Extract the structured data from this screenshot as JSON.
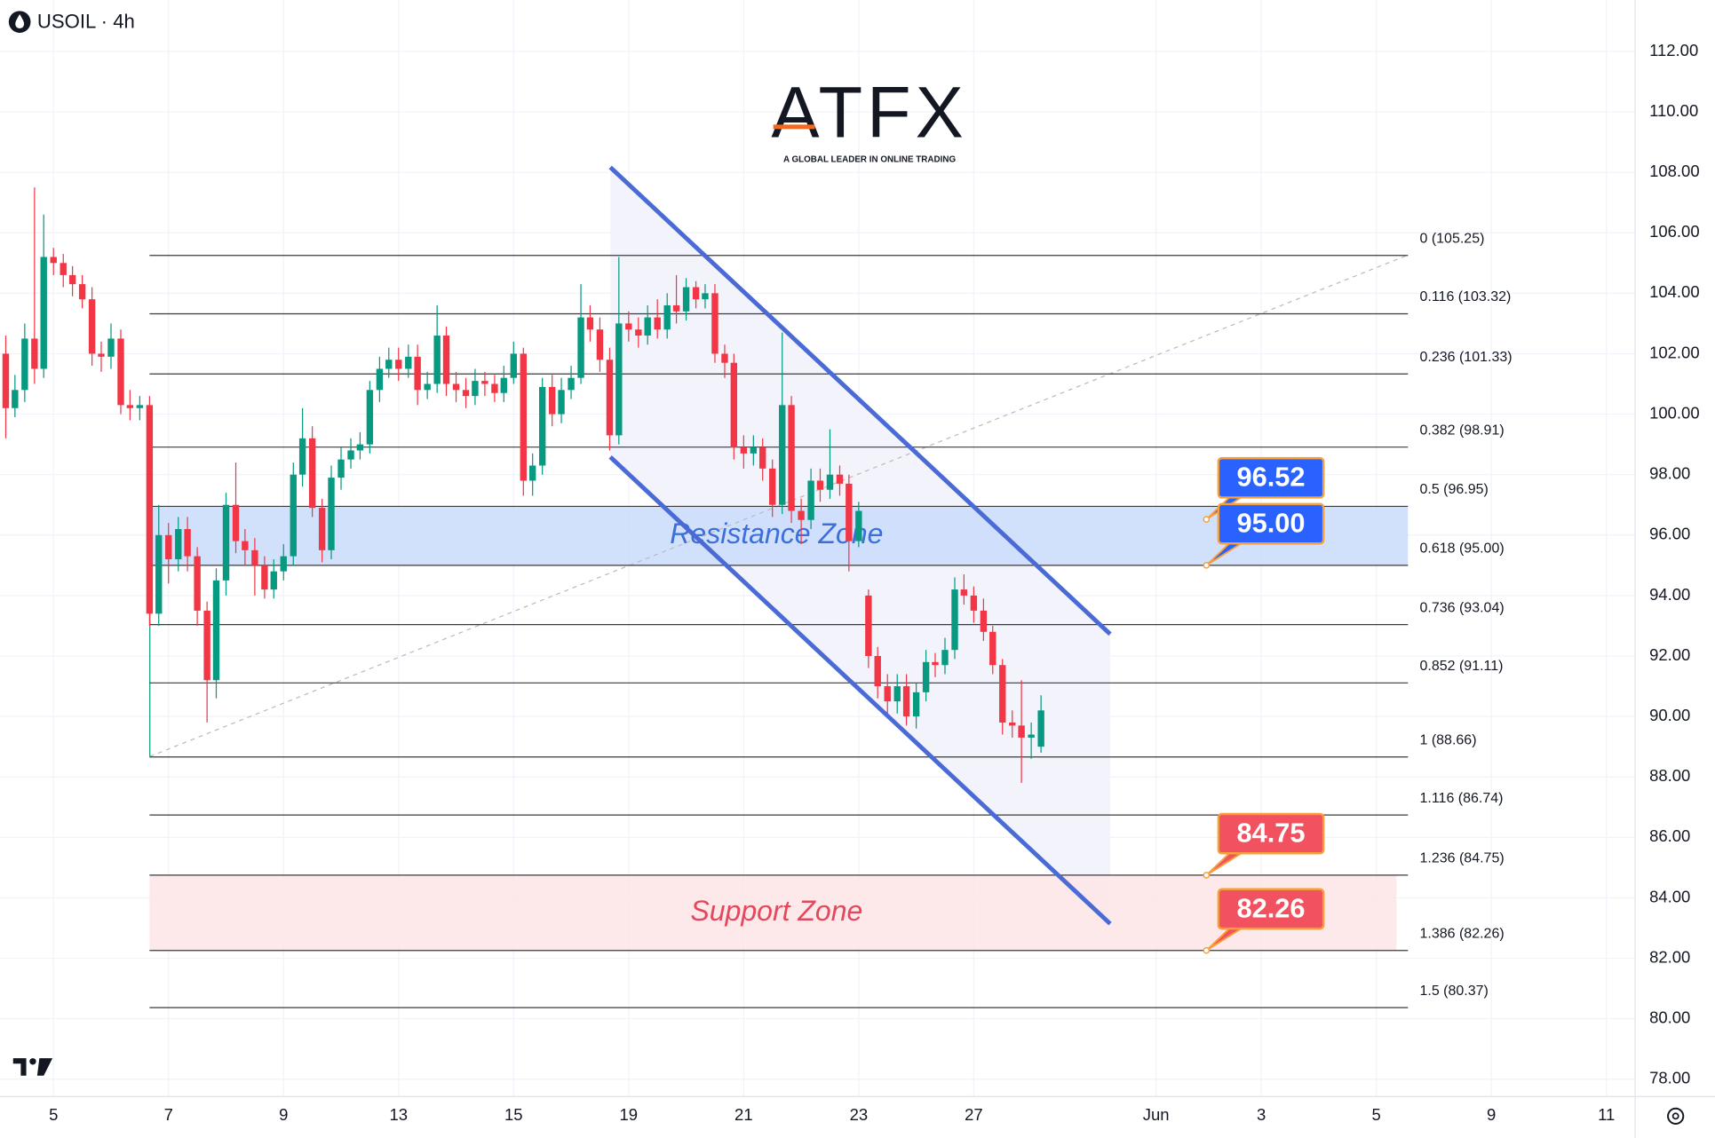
{
  "chart_data": {
    "type": "candlestick",
    "title": "USOIL · 4h",
    "watermark": {
      "brand": "ATFX",
      "tagline": "A GLOBAL LEADER IN ONLINE TRADING"
    },
    "grid": true,
    "up_color": "#089981",
    "down_color": "#f23645",
    "xlim": [
      -0.93,
      27.5
    ],
    "ylim": [
      77.43,
      113.7
    ],
    "xticks": [
      {
        "value": 0,
        "label": "5"
      },
      {
        "value": 2,
        "label": "7"
      },
      {
        "value": 4,
        "label": "9"
      },
      {
        "value": 6,
        "label": "13"
      },
      {
        "value": 8,
        "label": "15"
      },
      {
        "value": 10,
        "label": "19"
      },
      {
        "value": 12,
        "label": "21"
      },
      {
        "value": 14,
        "label": "23"
      },
      {
        "value": 16,
        "label": "27"
      },
      {
        "value": 19.17,
        "label": "Jun"
      },
      {
        "value": 21,
        "label": "3"
      },
      {
        "value": 23,
        "label": "5"
      },
      {
        "value": 25,
        "label": "9"
      },
      {
        "value": 27,
        "label": "11"
      }
    ],
    "yticks": [
      {
        "value": 112,
        "label": "112.00"
      },
      {
        "value": 110,
        "label": "110.00"
      },
      {
        "value": 108,
        "label": "108.00"
      },
      {
        "value": 106,
        "label": "106.00"
      },
      {
        "value": 104,
        "label": "104.00"
      },
      {
        "value": 102,
        "label": "102.00"
      },
      {
        "value": 100,
        "label": "100.00"
      },
      {
        "value": 98,
        "label": "98.00"
      },
      {
        "value": 96,
        "label": "96.00"
      },
      {
        "value": 94,
        "label": "94.00"
      },
      {
        "value": 92,
        "label": "92.00"
      },
      {
        "value": 90,
        "label": "90.00"
      },
      {
        "value": 88,
        "label": "88.00"
      },
      {
        "value": 86,
        "label": "86.00"
      },
      {
        "value": 84,
        "label": "84.00"
      },
      {
        "value": 82,
        "label": "82.00"
      },
      {
        "value": 80,
        "label": "80.00"
      },
      {
        "value": 78,
        "label": "78.00"
      }
    ],
    "x": [
      -0.83,
      -0.67,
      -0.5,
      -0.33,
      -0.17,
      0,
      0.17,
      0.33,
      0.5,
      0.67,
      0.83,
      1,
      1.17,
      1.33,
      1.5,
      1.67,
      1.83,
      2,
      2.17,
      2.33,
      2.5,
      2.67,
      2.83,
      3,
      3.17,
      3.33,
      3.5,
      3.67,
      3.83,
      4,
      4.17,
      4.33,
      4.5,
      4.67,
      4.83,
      5,
      5.17,
      5.33,
      5.5,
      5.67,
      5.83,
      6,
      6.17,
      6.33,
      6.5,
      6.67,
      6.83,
      7,
      7.17,
      7.33,
      7.5,
      7.67,
      7.83,
      8,
      8.17,
      8.33,
      8.5,
      8.67,
      8.83,
      9,
      9.17,
      9.33,
      9.5,
      9.67,
      9.83,
      10,
      10.17,
      10.33,
      10.5,
      10.67,
      10.83,
      11,
      11.17,
      11.33,
      11.5,
      11.67,
      11.83,
      12,
      12.17,
      12.33,
      12.5,
      12.67,
      12.83,
      13,
      13.17,
      13.33,
      13.5,
      13.67,
      13.83,
      14,
      14.17,
      14.33,
      14.5,
      14.67,
      14.83,
      15,
      15.17,
      15.33,
      15.5,
      15.67,
      15.83,
      16,
      16.17,
      16.33,
      16.5,
      16.67,
      16.83,
      17,
      17.17
    ],
    "open": [
      102.0,
      100.2,
      100.8,
      102.5,
      101.5,
      105.2,
      105.0,
      104.6,
      104.3,
      103.8,
      102.0,
      101.9,
      102.5,
      100.3,
      100.2,
      100.3,
      93.4,
      96.0,
      95.2,
      96.2,
      95.3,
      93.5,
      91.2,
      94.5,
      97.0,
      95.8,
      95.5,
      95.0,
      94.2,
      94.8,
      95.3,
      98.0,
      99.2,
      96.9,
      95.5,
      97.9,
      98.5,
      98.8,
      99.0,
      100.8,
      101.5,
      101.8,
      101.5,
      101.9,
      100.8,
      101.0,
      102.6,
      101.0,
      100.8,
      100.6,
      101.1,
      101.0,
      100.7,
      101.2,
      102.0,
      97.8,
      98.3,
      100.9,
      100.0,
      100.8,
      101.2,
      103.2,
      102.8,
      101.8,
      99.3,
      103.0,
      102.8,
      102.6,
      103.2,
      102.8,
      103.6,
      103.4,
      104.2,
      103.8,
      104.0,
      102.0,
      101.7,
      98.9,
      98.7,
      98.9,
      98.2,
      97.0,
      100.3,
      96.8,
      96.5,
      97.8,
      97.5,
      98.0,
      97.7,
      95.8,
      94.0,
      92.0,
      91.0,
      90.5,
      91.0,
      90.0,
      90.8,
      91.8,
      91.7,
      92.2,
      94.2,
      94.0,
      93.5,
      92.8,
      91.7,
      89.8,
      89.7,
      89.3,
      89.0
    ],
    "high": [
      102.6,
      101.3,
      103.0,
      107.5,
      106.6,
      105.5,
      105.3,
      104.9,
      104.6,
      104.2,
      102.4,
      103.0,
      102.8,
      100.8,
      100.6,
      100.6,
      97.0,
      96.4,
      96.6,
      96.6,
      95.6,
      93.8,
      94.9,
      97.4,
      98.4,
      96.2,
      95.9,
      95.3,
      95.2,
      95.7,
      98.4,
      100.2,
      99.6,
      97.2,
      98.3,
      98.9,
      99.2,
      99.4,
      101.1,
      101.9,
      102.2,
      102.2,
      102.3,
      102.3,
      101.4,
      103.6,
      102.9,
      101.4,
      101.2,
      101.5,
      101.4,
      101.3,
      101.6,
      102.4,
      102.2,
      98.7,
      101.2,
      101.3,
      101.2,
      101.6,
      104.3,
      103.6,
      103.2,
      102.2,
      105.2,
      103.4,
      103.2,
      103.6,
      103.8,
      104.0,
      104.6,
      104.5,
      104.4,
      104.3,
      104.3,
      102.3,
      102.0,
      99.3,
      99.3,
      99.2,
      98.5,
      102.7,
      100.6,
      97.2,
      98.2,
      98.2,
      99.5,
      98.3,
      98.0,
      97.1,
      94.2,
      92.3,
      91.4,
      91.4,
      91.4,
      91.1,
      92.2,
      92.1,
      92.6,
      94.6,
      94.7,
      94.3,
      93.9,
      93.0,
      91.9,
      90.2,
      91.2,
      89.8,
      90.7
    ],
    "low": [
      99.2,
      99.9,
      100.4,
      101.0,
      101.2,
      104.6,
      104.2,
      103.9,
      103.5,
      101.6,
      101.4,
      101.5,
      100.0,
      99.8,
      99.8,
      93.0,
      93.0,
      94.4,
      94.8,
      94.8,
      93.0,
      89.8,
      90.6,
      94.0,
      95.4,
      95.0,
      94.0,
      93.9,
      93.9,
      94.5,
      95.0,
      97.6,
      96.6,
      95.1,
      95.2,
      97.5,
      98.2,
      98.5,
      98.7,
      100.4,
      101.2,
      101.1,
      101.2,
      100.3,
      100.5,
      100.7,
      100.6,
      100.4,
      100.2,
      100.3,
      100.6,
      100.4,
      100.4,
      101.0,
      97.3,
      97.3,
      98.0,
      99.6,
      99.7,
      100.5,
      101.0,
      102.4,
      101.4,
      98.8,
      99.0,
      102.4,
      102.2,
      102.3,
      102.5,
      102.5,
      103.0,
      103.1,
      103.5,
      103.5,
      101.7,
      101.2,
      98.5,
      98.2,
      98.3,
      97.8,
      96.6,
      96.7,
      96.4,
      95.7,
      96.2,
      97.1,
      97.2,
      97.3,
      94.8,
      95.6,
      91.6,
      90.6,
      90.0,
      90.1,
      89.7,
      89.6,
      90.5,
      91.3,
      91.4,
      91.9,
      93.7,
      93.1,
      92.5,
      91.4,
      89.4,
      89.3,
      87.8,
      88.6,
      88.8
    ],
    "close": [
      100.2,
      100.8,
      102.5,
      101.5,
      105.2,
      105.0,
      104.6,
      104.3,
      103.8,
      102.0,
      101.9,
      102.5,
      100.3,
      100.2,
      100.3,
      93.4,
      96.0,
      95.2,
      96.2,
      95.3,
      93.5,
      91.2,
      94.5,
      97.0,
      95.8,
      95.5,
      95.0,
      94.2,
      94.8,
      95.3,
      98.0,
      99.2,
      96.9,
      95.5,
      97.9,
      98.5,
      98.8,
      99.0,
      100.8,
      101.5,
      101.8,
      101.5,
      101.9,
      100.8,
      101.0,
      102.6,
      101.0,
      100.8,
      100.6,
      101.1,
      101.0,
      100.7,
      101.2,
      102.0,
      97.8,
      98.3,
      100.9,
      100.0,
      100.8,
      101.2,
      103.2,
      102.8,
      101.8,
      99.3,
      103.0,
      102.8,
      102.6,
      103.2,
      102.8,
      103.6,
      103.4,
      104.2,
      103.8,
      104.0,
      102.0,
      101.7,
      98.9,
      98.7,
      98.9,
      98.2,
      97.0,
      100.3,
      96.8,
      96.5,
      97.8,
      97.5,
      98.0,
      97.7,
      95.8,
      96.8,
      92.0,
      91.0,
      90.5,
      91.0,
      90.0,
      90.8,
      91.8,
      91.7,
      92.2,
      94.2,
      94.0,
      93.5,
      92.8,
      91.7,
      89.8,
      89.7,
      89.3,
      89.4,
      90.2
    ],
    "fib_levels": [
      {
        "label": "0 (105.25)",
        "value": 105.25
      },
      {
        "label": "0.116 (103.32)",
        "value": 103.32
      },
      {
        "label": "0.236 (101.33)",
        "value": 101.33
      },
      {
        "label": "0.382 (98.91)",
        "value": 98.91
      },
      {
        "label": "0.5 (96.95)",
        "value": 96.95
      },
      {
        "label": "0.618 (95.00)",
        "value": 95.0
      },
      {
        "label": "0.736 (93.04)",
        "value": 93.04
      },
      {
        "label": "0.852 (91.11)",
        "value": 91.11
      },
      {
        "label": "1 (88.66)",
        "value": 88.66
      },
      {
        "label": "1.116 (86.74)",
        "value": 86.74
      },
      {
        "label": "1.236 (84.75)",
        "value": 84.75
      },
      {
        "label": "1.386 (82.26)",
        "value": 82.26
      },
      {
        "label": "1.5 (80.37)",
        "value": 80.37
      }
    ],
    "zones": [
      {
        "name": "Resistance Zone",
        "low": 95.0,
        "high": 96.95,
        "color": "#c9dcfb",
        "text_color": "#3d6fd9"
      },
      {
        "name": "Support Zone",
        "low": 82.26,
        "high": 84.75,
        "color": "#fde4e6",
        "text_color": "#e5485c"
      }
    ],
    "price_labels": [
      {
        "value": 96.52,
        "label": "96.52",
        "color": "#2962ff"
      },
      {
        "value": 95.0,
        "label": "95.00",
        "color": "#2962ff"
      },
      {
        "value": 84.75,
        "label": "84.75",
        "color": "#f2525f"
      },
      {
        "value": 82.26,
        "label": "82.26",
        "color": "#f2525f"
      }
    ]
  }
}
